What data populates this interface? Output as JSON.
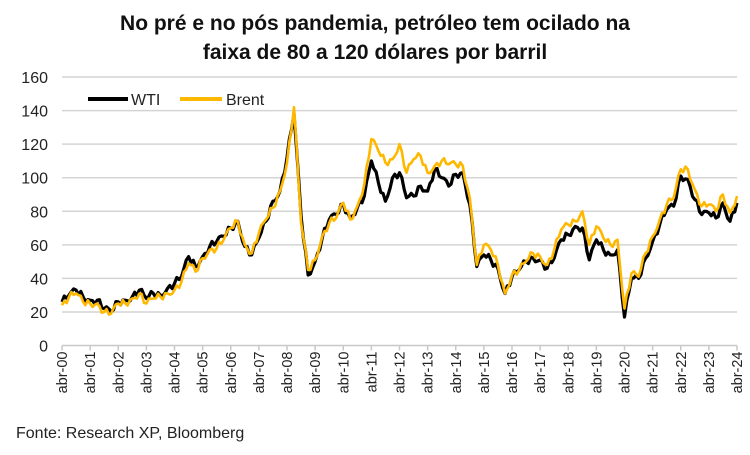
{
  "chart_data": {
    "type": "line",
    "title": [
      "No pré e no pós pandemia, petróleo tem ocilado na",
      "faixa de 80 a 120 dólares por barril"
    ],
    "xlabel": "",
    "ylabel": "",
    "ylim": [
      0,
      160
    ],
    "yticks": [
      0,
      20,
      40,
      60,
      80,
      100,
      120,
      140,
      160
    ],
    "xticks": [
      "abr-00",
      "abr-01",
      "abr-02",
      "abr-03",
      "abr-04",
      "abr-05",
      "abr-06",
      "abr-07",
      "abr-08",
      "abr-09",
      "abr-10",
      "abr-11",
      "abr-12",
      "abr-13",
      "abr-14",
      "abr-15",
      "abr-16",
      "abr-17",
      "abr-18",
      "abr-19",
      "abr-20",
      "abr-21",
      "abr-22",
      "abr-23",
      "abr-24"
    ],
    "grid": true,
    "legend": "top-left",
    "x_start": "2000-04",
    "x_step_months": 3,
    "series": [
      {
        "name": "WTI",
        "color": "#000000",
        "values": [
          26,
          30,
          33,
          29,
          27,
          27,
          22,
          20,
          26,
          27,
          29,
          33,
          28,
          31,
          30,
          34,
          37,
          41,
          53,
          47,
          53,
          59,
          62,
          65,
          70,
          74,
          59,
          54,
          64,
          74,
          86,
          92,
          112,
          138,
          77,
          42,
          50,
          64,
          75,
          78,
          84,
          76,
          82,
          89,
          110,
          97,
          86,
          100,
          103,
          88,
          89,
          95,
          92,
          105,
          100,
          95,
          102,
          103,
          84,
          47,
          54,
          51,
          46,
          31,
          41,
          45,
          50,
          52,
          51,
          46,
          52,
          63,
          66,
          71,
          70,
          51,
          63,
          57,
          54,
          57,
          17,
          40,
          40,
          52,
          62,
          72,
          81,
          83,
          101,
          99,
          87,
          78,
          79,
          76,
          85,
          74,
          85
        ]
      },
      {
        "name": "Brent",
        "color": "#FFB800",
        "values": [
          24,
          29,
          31,
          26,
          25,
          25,
          20,
          19,
          25,
          25,
          28,
          31,
          25,
          28,
          29,
          31,
          33,
          38,
          49,
          44,
          52,
          57,
          58,
          63,
          70,
          74,
          60,
          55,
          67,
          75,
          82,
          92,
          109,
          142,
          73,
          45,
          51,
          65,
          73,
          76,
          85,
          75,
          83,
          96,
          123,
          116,
          109,
          111,
          120,
          103,
          111,
          113,
          103,
          107,
          110,
          108,
          108,
          107,
          88,
          48,
          60,
          57,
          48,
          31,
          42,
          45,
          50,
          55,
          53,
          48,
          57,
          69,
          72,
          74,
          80,
          60,
          71,
          64,
          60,
          63,
          22,
          43,
          41,
          55,
          65,
          75,
          84,
          88,
          105,
          105,
          93,
          83,
          84,
          80,
          90,
          79,
          89
        ]
      }
    ]
  },
  "source": "Fonte: Research XP, Bloomberg"
}
